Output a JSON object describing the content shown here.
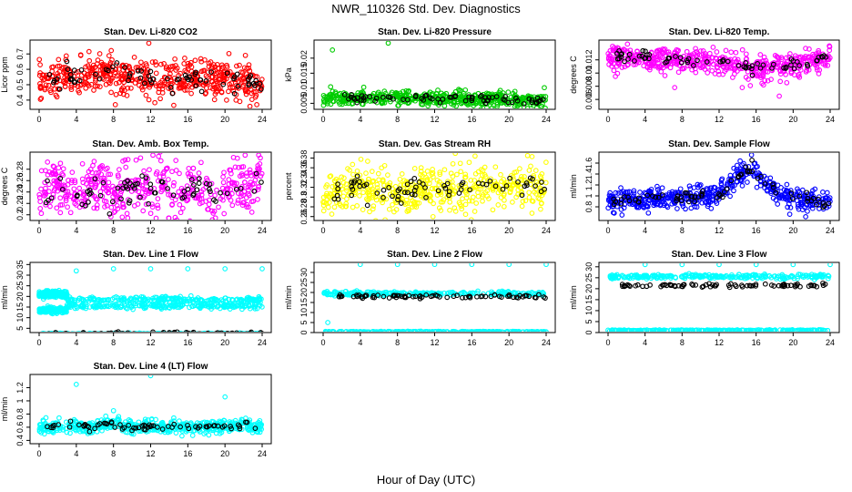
{
  "figure": {
    "title": "NWR_110326  Std. Dev. Diagnostics",
    "xlabel": "Hour of Day (UTC)"
  },
  "chart_data": [
    {
      "type": "scatter",
      "title": "Stan. Dev. Li-820 CO2",
      "ylabel": "Licor ppm",
      "color": "#ff0000",
      "xlim": [
        0,
        24
      ],
      "ylim": [
        0.34,
        0.79
      ],
      "xticks": [
        0,
        4,
        8,
        12,
        16,
        20,
        24
      ],
      "yticks": [
        0.4,
        0.5,
        0.6,
        0.7
      ],
      "base": 0.54,
      "spread": 0.06,
      "n": 520,
      "hourly_means": [
        0.5,
        0.52,
        0.53,
        0.55,
        0.54,
        0.56,
        0.55,
        0.58,
        0.6,
        0.53,
        0.55,
        0.54,
        0.55,
        0.52,
        0.53,
        0.55,
        0.56,
        0.54,
        0.53,
        0.55,
        0.54,
        0.53,
        0.52,
        0.51,
        0.5
      ],
      "outliers": [
        [
          11.8,
          0.77
        ],
        [
          8.2,
          0.37
        ]
      ]
    },
    {
      "type": "scatter",
      "title": "Stan. Dev. Li-820 Pressure",
      "ylabel": "kPa",
      "color": "#00cc00",
      "xlim": [
        0,
        24
      ],
      "ylim": [
        0.003,
        0.026
      ],
      "xticks": [
        0,
        4,
        8,
        12,
        16,
        20,
        24
      ],
      "yticks": [
        0.005,
        0.01,
        0.015,
        0.02
      ],
      "base": 0.0065,
      "spread": 0.0012,
      "n": 520,
      "hourly_means": [
        0.0065,
        0.007,
        0.0068,
        0.0065,
        0.0066,
        0.0065,
        0.0067,
        0.0068,
        0.0066,
        0.0064,
        0.0065,
        0.0066,
        0.0064,
        0.0063,
        0.0065,
        0.0066,
        0.0064,
        0.0063,
        0.0064,
        0.0065,
        0.0062,
        0.006,
        0.0058,
        0.0058,
        0.0059
      ],
      "outliers": [
        [
          1,
          0.0227
        ],
        [
          7,
          0.025
        ],
        [
          0.8,
          0.0105
        ],
        [
          23.8,
          0.0102
        ]
      ]
    },
    {
      "type": "scatter",
      "title": "Stan. Dev. Li-820 Temp.",
      "ylabel": "degrees C",
      "color": "#ff00ff",
      "xlim": [
        0,
        24
      ],
      "ylim": [
        0.0045,
        0.015
      ],
      "xticks": [
        0,
        4,
        8,
        12,
        16,
        20,
        24
      ],
      "yticks": [
        0.006,
        0.008,
        0.01,
        0.012
      ],
      "base": 0.0115,
      "spread": 0.0009,
      "n": 520,
      "hourly_means": [
        0.0124,
        0.0125,
        0.0123,
        0.0124,
        0.0125,
        0.0121,
        0.0118,
        0.012,
        0.0119,
        0.0117,
        0.0118,
        0.012,
        0.0117,
        0.0115,
        0.0114,
        0.0108,
        0.0106,
        0.0109,
        0.011,
        0.0108,
        0.0111,
        0.0113,
        0.0116,
        0.012,
        0.0122
      ],
      "outliers": [
        [
          7.2,
          0.0078
        ],
        [
          16.8,
          0.0082
        ],
        [
          18.5,
          0.0065
        ],
        [
          14.5,
          0.0078
        ]
      ]
    },
    {
      "type": "scatter",
      "title": "Stan. Dev. Amb. Box Temp.",
      "ylabel": "degrees C",
      "color": "#ff00ff",
      "xlim": [
        0,
        24
      ],
      "ylim": [
        0.19,
        0.31
      ],
      "xticks": [
        0,
        4,
        8,
        12,
        16,
        20,
        24
      ],
      "yticks": [
        0.2,
        0.22,
        0.24,
        0.26,
        0.28
      ],
      "base": 0.245,
      "spread": 0.025,
      "n": 480,
      "hourly_means": [
        0.24,
        0.25,
        0.26,
        0.24,
        0.23,
        0.24,
        0.25,
        0.24,
        0.23,
        0.25,
        0.24,
        0.26,
        0.24,
        0.25,
        0.24,
        0.23,
        0.24,
        0.25,
        0.24,
        0.23,
        0.24,
        0.25,
        0.24,
        0.25,
        0.26
      ],
      "outliers": [
        [
          23.8,
          0.3
        ]
      ]
    },
    {
      "type": "scatter",
      "title": "Stan. Dev. Gas Stream RH",
      "ylabel": "percent",
      "color": "#ffff00",
      "xlim": [
        0,
        24
      ],
      "ylim": [
        0.252,
        0.392
      ],
      "xticks": [
        0,
        4,
        8,
        12,
        16,
        20,
        24
      ],
      "yticks": [
        0.26,
        0.28,
        0.3,
        0.32,
        0.34,
        0.36,
        0.38
      ],
      "base": 0.315,
      "spread": 0.022,
      "n": 500,
      "hourly_means": [
        0.3,
        0.305,
        0.31,
        0.32,
        0.325,
        0.31,
        0.315,
        0.31,
        0.305,
        0.31,
        0.315,
        0.32,
        0.315,
        0.32,
        0.31,
        0.315,
        0.32,
        0.325,
        0.32,
        0.32,
        0.325,
        0.33,
        0.33,
        0.32,
        0.325
      ],
      "outliers": [
        [
          22,
          0.385
        ],
        [
          5,
          0.27
        ]
      ]
    },
    {
      "type": "scatter",
      "title": "Stan. Dev. Sample Flow",
      "ylabel": "ml/min",
      "color": "#0000ff",
      "xlim": [
        0,
        24
      ],
      "ylim": [
        0.55,
        1.8
      ],
      "xticks": [
        0,
        4,
        8,
        12,
        16,
        20,
        24
      ],
      "yticks": [
        0.8,
        1.0,
        1.2,
        1.4,
        1.6
      ],
      "base": 0.95,
      "spread": 0.1,
      "n": 520,
      "hourly_means": [
        0.9,
        0.92,
        0.93,
        0.92,
        0.93,
        0.95,
        0.94,
        0.95,
        0.96,
        0.97,
        0.98,
        1.0,
        1.05,
        1.15,
        1.35,
        1.5,
        1.4,
        1.25,
        1.1,
        1.0,
        0.95,
        0.93,
        0.92,
        0.9,
        0.88
      ],
      "outliers": [
        [
          15.5,
          1.75
        ],
        [
          1.5,
          0.65
        ]
      ]
    },
    {
      "type": "scatter",
      "title": "Stan. Dev. Line 1 Flow",
      "ylabel": "ml/min",
      "color": "#00ffff",
      "xlim": [
        0,
        24
      ],
      "ylim": [
        3,
        36
      ],
      "xticks": [
        0,
        4,
        8,
        12,
        16,
        20,
        24
      ],
      "yticks": [
        5,
        10,
        15,
        20,
        25,
        30,
        35
      ],
      "bands": [
        {
          "level": 21,
          "spread": 1.2,
          "from": 0,
          "to": 3
        },
        {
          "level": 13.5,
          "spread": 1,
          "from": 0,
          "to": 3
        },
        {
          "level": 18.5,
          "spread": 1,
          "from": 3,
          "to": 24
        },
        {
          "level": 15.5,
          "spread": 1,
          "from": 3,
          "to": 24
        },
        {
          "level": 2.5,
          "spread": 0.2,
          "from": 0,
          "to": 24
        }
      ],
      "n_per_band": 220,
      "black_level": 2.5,
      "outliers": [
        [
          4,
          32
        ],
        [
          8,
          33
        ],
        [
          12,
          33
        ],
        [
          16,
          33
        ],
        [
          20,
          33
        ],
        [
          24,
          33
        ]
      ]
    },
    {
      "type": "scatter",
      "title": "Stan. Dev. Line 2 Flow",
      "ylabel": "ml/min",
      "color": "#00ffff",
      "xlim": [
        0,
        24
      ],
      "ylim": [
        0,
        35
      ],
      "xticks": [
        0,
        4,
        8,
        12,
        16,
        20,
        24
      ],
      "yticks": [
        0,
        5,
        10,
        15,
        20,
        25,
        30
      ],
      "bands": [
        {
          "level": 19.5,
          "spread": 0.8,
          "from": 0,
          "to": 24
        },
        {
          "level": 0.4,
          "spread": 0.2,
          "from": 0,
          "to": 24
        }
      ],
      "n_per_band": 260,
      "black_level": 18,
      "outliers": [
        [
          4,
          34
        ],
        [
          8,
          34
        ],
        [
          12,
          34
        ],
        [
          16,
          34
        ],
        [
          20,
          34
        ],
        [
          24,
          34
        ],
        [
          0.5,
          5
        ]
      ]
    },
    {
      "type": "scatter",
      "title": "Stan. Dev. Line 3 Flow",
      "ylabel": "ml/min",
      "color": "#00ffff",
      "xlim": [
        0,
        24
      ],
      "ylim": [
        0,
        32
      ],
      "xticks": [
        0,
        4,
        8,
        12,
        16,
        20,
        24
      ],
      "yticks": [
        0,
        5,
        10,
        15,
        20,
        25,
        30
      ],
      "bands": [
        {
          "level": 25.5,
          "spread": 0.8,
          "from": 0,
          "to": 24
        },
        {
          "level": 1,
          "spread": 0.2,
          "from": 0,
          "to": 24
        }
      ],
      "n_per_band": 260,
      "black_level": 21.5,
      "outliers": [
        [
          4,
          31
        ],
        [
          8,
          31
        ],
        [
          12,
          31
        ],
        [
          16,
          31
        ],
        [
          20,
          31
        ],
        [
          24,
          31
        ]
      ]
    },
    {
      "type": "scatter",
      "title": "Stan. Dev. Line 4 (LT) Flow",
      "ylabel": "ml/min",
      "color": "#00ffff",
      "xlim": [
        0,
        24
      ],
      "ylim": [
        0.35,
        1.4
      ],
      "xticks": [
        0,
        4,
        8,
        12,
        16,
        20,
        24
      ],
      "yticks": [
        0.4,
        0.6,
        0.8,
        1.0,
        1.2
      ],
      "base": 0.6,
      "spread": 0.05,
      "n": 520,
      "hourly_means": [
        0.58,
        0.6,
        0.62,
        0.6,
        0.6,
        0.62,
        0.6,
        0.64,
        0.66,
        0.62,
        0.6,
        0.62,
        0.6,
        0.61,
        0.6,
        0.6,
        0.62,
        0.6,
        0.61,
        0.6,
        0.62,
        0.6,
        0.66,
        0.6,
        0.6
      ],
      "outliers": [
        [
          4,
          1.25
        ],
        [
          12,
          1.38
        ],
        [
          20,
          1.06
        ],
        [
          8,
          0.85
        ]
      ]
    }
  ]
}
